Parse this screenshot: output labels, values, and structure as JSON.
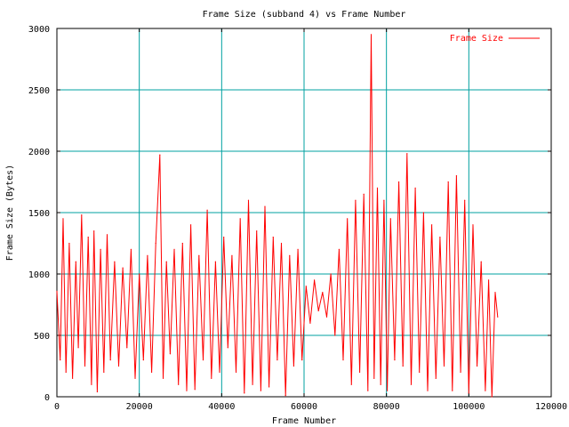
{
  "chart_data": {
    "type": "line",
    "title": "Frame Size (subband 4) vs Frame Number",
    "xlabel": "Frame Number",
    "ylabel": "Frame Size (Bytes)",
    "xlim": [
      0,
      120000
    ],
    "ylim": [
      0,
      3000
    ],
    "xticks": [
      0,
      20000,
      40000,
      60000,
      80000,
      100000,
      120000
    ],
    "yticks": [
      0,
      500,
      1000,
      1500,
      2000,
      2500,
      3000
    ],
    "grid": true,
    "legend_position": "top-right",
    "series": [
      {
        "name": "Frame Size",
        "color": "#ff0000",
        "note": "dense per-frame trace; values below are sampled local extremes",
        "x": [
          0,
          800,
          1500,
          2200,
          3000,
          3800,
          4600,
          5200,
          6000,
          6800,
          7600,
          8400,
          9000,
          9800,
          10600,
          11400,
          12200,
          13000,
          14000,
          15000,
          16000,
          17000,
          18000,
          19000,
          20000,
          21000,
          22000,
          23000,
          24000,
          25000,
          25800,
          26600,
          27500,
          28500,
          29500,
          30500,
          31500,
          32500,
          33500,
          34500,
          35500,
          36500,
          37500,
          38500,
          39500,
          40500,
          41500,
          42500,
          43500,
          44500,
          45500,
          46500,
          47500,
          48500,
          49500,
          50500,
          51500,
          52500,
          53500,
          54500,
          55500,
          56500,
          57500,
          58500,
          59500,
          60500,
          61500,
          62500,
          63500,
          64500,
          65500,
          66500,
          67500,
          68500,
          69500,
          70500,
          71500,
          72500,
          73500,
          74500,
          75500,
          76300,
          77000,
          77800,
          78600,
          79400,
          80200,
          81000,
          82000,
          83000,
          84000,
          85000,
          86000,
          87000,
          88000,
          89000,
          90000,
          91000,
          92000,
          93000,
          94000,
          95000,
          96000,
          97000,
          98000,
          99000,
          100000,
          101000,
          102000,
          103000,
          104000,
          104800,
          105600,
          106400,
          107000
        ],
        "y": [
          860,
          300,
          1450,
          200,
          1250,
          150,
          1100,
          400,
          1480,
          250,
          1300,
          100,
          1350,
          40,
          1200,
          200,
          1320,
          300,
          1100,
          250,
          1050,
          400,
          1200,
          150,
          1000,
          300,
          1150,
          200,
          1250,
          1970,
          150,
          1100,
          350,
          1200,
          100,
          1250,
          50,
          1400,
          60,
          1150,
          300,
          1520,
          150,
          1100,
          200,
          1300,
          400,
          1150,
          200,
          1450,
          30,
          1600,
          100,
          1350,
          50,
          1550,
          80,
          1300,
          300,
          1250,
          10,
          1150,
          250,
          1200,
          300,
          900,
          600,
          950,
          700,
          850,
          650,
          1000,
          500,
          1200,
          300,
          1450,
          100,
          1600,
          200,
          1650,
          50,
          2950,
          150,
          1700,
          100,
          1600,
          50,
          1450,
          300,
          1750,
          250,
          1980,
          100,
          1700,
          200,
          1500,
          50,
          1400,
          150,
          1300,
          250,
          1750,
          50,
          1800,
          200,
          1600,
          30,
          1400,
          250,
          1100,
          50,
          950,
          0,
          850,
          650
        ]
      }
    ]
  }
}
